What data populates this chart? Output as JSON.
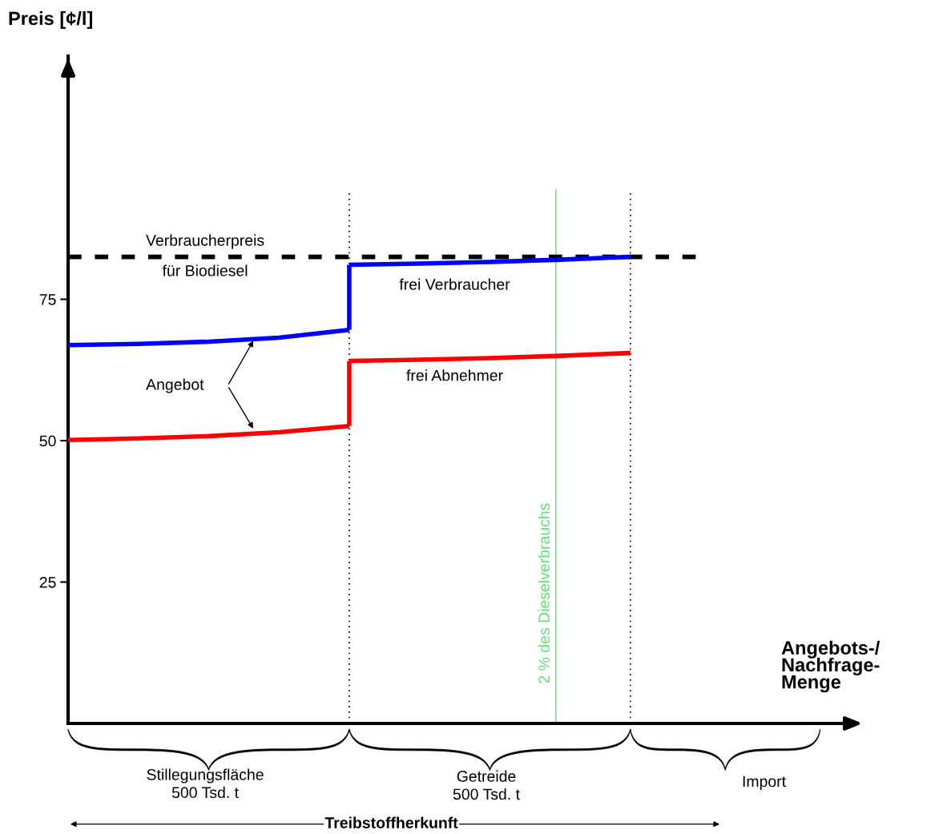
{
  "chart_data": {
    "type": "line",
    "ylabel": "Preis [¢/l]",
    "xlabel": "Angebots-/\nNachfrage-\nMenge",
    "categories": [
      null,
      null,
      null,
      null,
      null,
      null,
      null,
      null,
      null,
      null,
      null,
      null
    ],
    "ylim": [
      0,
      118
    ],
    "yticks": [
      25,
      50,
      75
    ],
    "grid": false,
    "legend": false,
    "marker": "none",
    "series": [
      {
        "name": "Verbraucherpreis\nfür Biodiesel",
        "color": "#000000",
        "line_style": "dashed",
        "values": [
          82.5,
          82.5,
          82.5,
          82.5,
          82.5,
          82.5,
          82.5,
          82.5,
          82.5,
          82.5,
          null,
          null
        ]
      },
      {
        "color": "#0000ff",
        "line_style": "solid",
        "values": [
          66.9,
          67.1,
          67.5,
          68.2,
          69.6,
          null,
          null,
          null,
          null,
          null,
          null,
          null
        ]
      },
      {
        "name": "frei Verbraucher",
        "color": "#0000ff",
        "line_style": "solid",
        "values": [
          null,
          null,
          null,
          null,
          81.1,
          81.3,
          81.6,
          82.0,
          82.5,
          null,
          null,
          null
        ]
      },
      {
        "color": "#ff0000",
        "line_style": "solid",
        "values": [
          50.1,
          50.4,
          50.8,
          51.5,
          52.6,
          null,
          null,
          null,
          null,
          null,
          null,
          null
        ]
      },
      {
        "name": "frei Abnehmer",
        "color": "#ff0000",
        "line_style": "solid",
        "values": [
          null,
          null,
          null,
          null,
          64.1,
          64.3,
          64.6,
          65.0,
          65.5,
          null,
          null,
          null
        ]
      }
    ],
    "annotations": [
      "Angebot",
      "Stillegungsfläche\n500 Tsd. t",
      "Getreide\n500 Tsd. t",
      "Import",
      "Treibstoffherkunft",
      "2 % des Dieselverbrauchs"
    ]
  }
}
